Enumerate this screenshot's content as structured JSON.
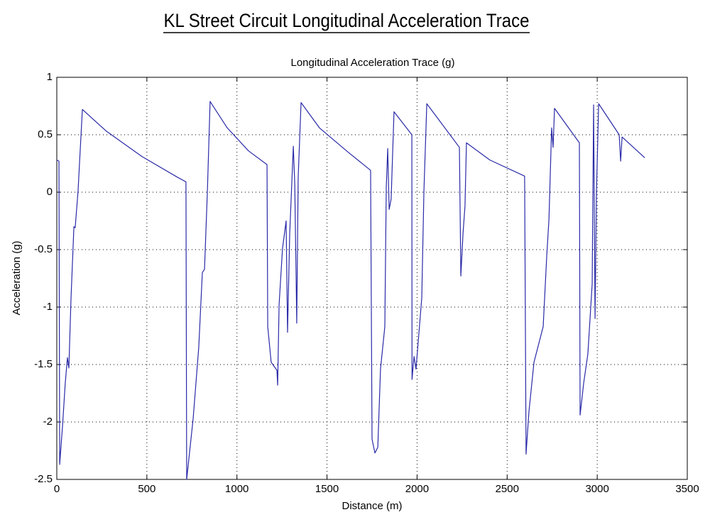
{
  "chart_data": {
    "type": "line",
    "title": "KL Street Circuit Longitudinal Acceleration Trace",
    "subtitle": "Longitudinal Acceleration Trace (g)",
    "xlabel": "Distance (m)",
    "ylabel": "Acceleration (g)",
    "color": "#2a2aa8",
    "grid": true,
    "xlim": [
      0,
      3500
    ],
    "ylim": [
      -2.5,
      1
    ],
    "xticks": [
      0,
      500,
      1000,
      1500,
      2000,
      2500,
      3000,
      3500
    ],
    "yticks": [
      -2.5,
      -2,
      -1.5,
      -1,
      -0.5,
      0,
      0.5,
      1
    ],
    "x": [
      0,
      12,
      16,
      32,
      47,
      59,
      67,
      79,
      95,
      102,
      118,
      126,
      142,
      276,
      473,
      670,
      717,
      721,
      757,
      788,
      808,
      820,
      836,
      851,
      946,
      1064,
      1167,
      1171,
      1190,
      1222,
      1226,
      1234,
      1253,
      1273,
      1281,
      1293,
      1313,
      1321,
      1332,
      1340,
      1356,
      1458,
      1616,
      1742,
      1750,
      1766,
      1782,
      1797,
      1821,
      1829,
      1837,
      1845,
      1856,
      1872,
      1971,
      1972,
      1983,
      1994,
      2010,
      2026,
      2038,
      2054,
      2235,
      2243,
      2255,
      2266,
      2274,
      2404,
      2597,
      2605,
      2621,
      2649,
      2700,
      2720,
      2732,
      2747,
      2755,
      2763,
      2901,
      2905,
      2925,
      2948,
      2972,
      2980,
      2988,
      2996,
      3008,
      3122,
      3130,
      3138,
      3264
    ],
    "values": [
      0.28,
      0.27,
      -2.37,
      -2.03,
      -1.66,
      -1.44,
      -1.53,
      -0.92,
      -0.3,
      -0.31,
      0.01,
      0.25,
      0.72,
      0.53,
      0.31,
      0.13,
      0.09,
      -2.5,
      -1.97,
      -1.35,
      -0.7,
      -0.67,
      0.01,
      0.79,
      0.56,
      0.36,
      0.24,
      -1.17,
      -1.48,
      -1.55,
      -1.68,
      -0.98,
      -0.49,
      -0.25,
      -1.22,
      -0.36,
      0.4,
      0.07,
      -1.14,
      0.13,
      0.78,
      0.56,
      0.35,
      0.19,
      -2.15,
      -2.27,
      -2.22,
      -1.54,
      -1.17,
      0.04,
      0.38,
      -0.15,
      -0.06,
      0.7,
      0.5,
      -1.63,
      -1.43,
      -1.54,
      -1.23,
      -0.92,
      0.01,
      0.77,
      0.39,
      -0.73,
      -0.36,
      -0.12,
      0.43,
      0.28,
      0.14,
      -2.28,
      -1.91,
      -1.48,
      -1.17,
      -0.55,
      -0.24,
      0.56,
      0.39,
      0.73,
      0.43,
      -1.94,
      -1.66,
      -1.41,
      -0.8,
      0.76,
      -1.1,
      0.01,
      0.77,
      0.5,
      0.27,
      0.48,
      0.3
    ]
  }
}
